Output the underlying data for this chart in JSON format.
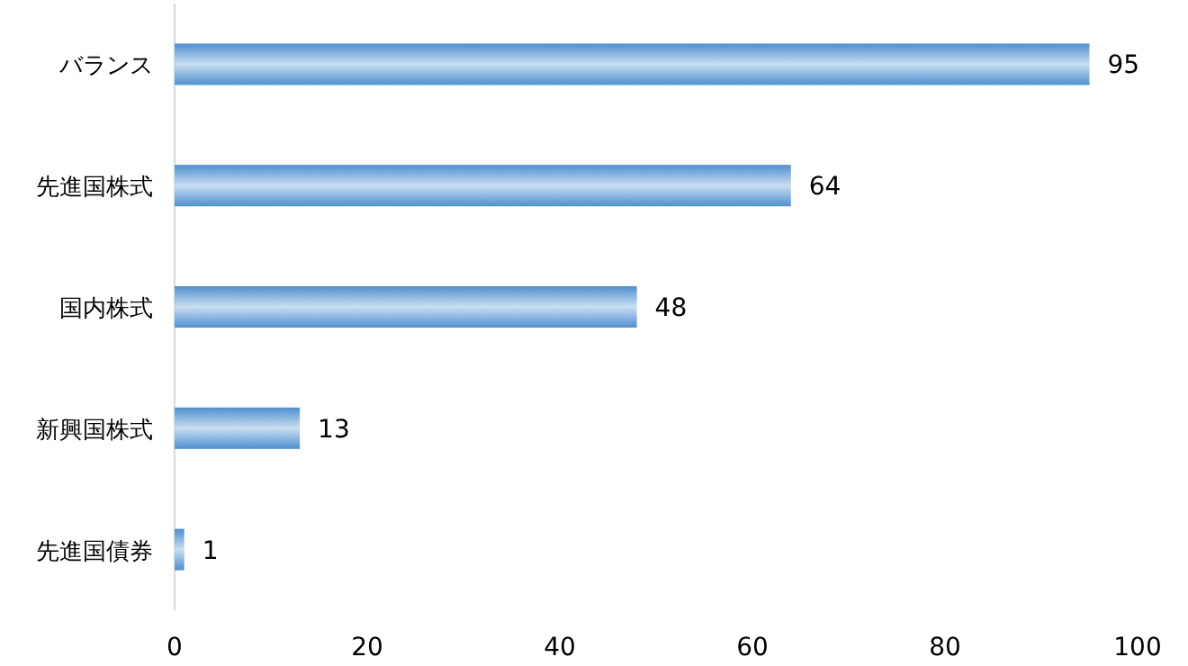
{
  "chart_data": {
    "type": "bar",
    "orientation": "horizontal",
    "categories": [
      "バランス",
      "先進国株式",
      "国内株式",
      "新興国株式",
      "先進国債券"
    ],
    "values": [
      95,
      64,
      48,
      13,
      1
    ],
    "color": "#4f8fcf",
    "xlim": [
      0,
      100
    ],
    "xticks": [
      0,
      20,
      40,
      60,
      80,
      100
    ],
    "data_labels": true
  }
}
